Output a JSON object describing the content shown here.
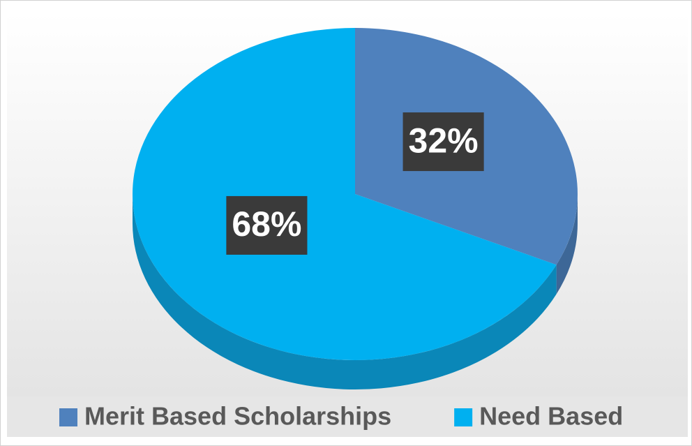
{
  "chart_data": {
    "type": "pie",
    "categories": [
      "Merit Based Scholarships",
      "Need Based"
    ],
    "values": [
      32,
      68
    ],
    "value_labels": [
      "32%",
      "68%"
    ],
    "colors": [
      "#4f81bd",
      "#00b0f0"
    ],
    "side_colors": [
      "#3d6797",
      "#0a87b8"
    ],
    "legend": "bottom"
  }
}
